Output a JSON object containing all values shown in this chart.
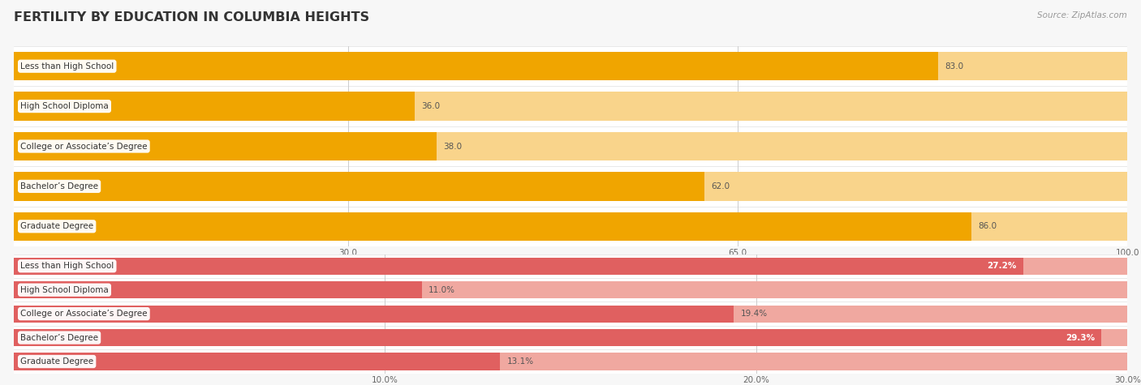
{
  "title": "FERTILITY BY EDUCATION IN COLUMBIA HEIGHTS",
  "source": "Source: ZipAtlas.com",
  "top_section": {
    "categories": [
      "Less than High School",
      "High School Diploma",
      "College or Associate’s Degree",
      "Bachelor’s Degree",
      "Graduate Degree"
    ],
    "values": [
      83.0,
      36.0,
      38.0,
      62.0,
      86.0
    ],
    "xlim": [
      0,
      100
    ],
    "xticks": [
      30.0,
      65.0,
      100.0
    ],
    "xtick_labels": [
      "30.0",
      "65.0",
      "100.0"
    ],
    "bar_color": "#F0A500",
    "bar_light_color": "#F9D48B",
    "value_suffix": ""
  },
  "bottom_section": {
    "categories": [
      "Less than High School",
      "High School Diploma",
      "College or Associate’s Degree",
      "Bachelor’s Degree",
      "Graduate Degree"
    ],
    "values": [
      27.2,
      11.0,
      19.4,
      29.3,
      13.1
    ],
    "xlim": [
      0,
      30
    ],
    "xticks": [
      10.0,
      20.0,
      30.0
    ],
    "xtick_labels": [
      "10.0%",
      "20.0%",
      "30.0%"
    ],
    "bar_color": "#E06060",
    "bar_light_color": "#F0A8A0",
    "value_suffix": "%"
  },
  "background_color": "#f7f7f7",
  "row_bg_color": "#ffffff",
  "separator_color": "#e0e0e0",
  "bar_height": 0.72,
  "title_fontsize": 11.5,
  "label_fontsize": 7.5,
  "value_fontsize": 7.5,
  "tick_fontsize": 7.5,
  "source_fontsize": 7.5
}
